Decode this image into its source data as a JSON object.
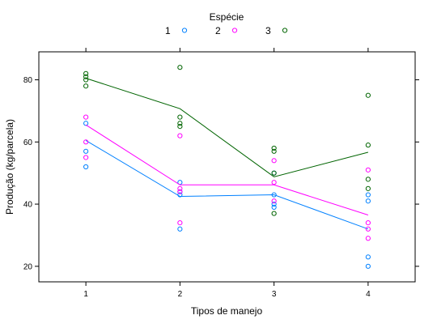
{
  "chart_data": {
    "type": "scatter",
    "xlabel": "Tipos de manejo",
    "ylabel": "Produção (kg/parcela)",
    "legend_title": "Espécie",
    "legend_position": "top",
    "x_ticks": [
      "1",
      "2",
      "3",
      "4"
    ],
    "y_ticks": [
      20,
      40,
      60,
      80
    ],
    "xlim": [
      0.5,
      4.5
    ],
    "ylim": [
      15,
      89
    ],
    "grid": false,
    "series": [
      {
        "name": "1",
        "color": "#0080ff",
        "points": [
          [
            1,
            66
          ],
          [
            1,
            57
          ],
          [
            1,
            52
          ],
          [
            2,
            47
          ],
          [
            2,
            44
          ],
          [
            2,
            43
          ],
          [
            2,
            32
          ],
          [
            3,
            43
          ],
          [
            3,
            40
          ],
          [
            3,
            39
          ],
          [
            3,
            50
          ],
          [
            4,
            43
          ],
          [
            4,
            41
          ],
          [
            4,
            23
          ],
          [
            4,
            20
          ]
        ],
        "line": [
          [
            1,
            60.5
          ],
          [
            2,
            42.5
          ],
          [
            3,
            43
          ],
          [
            4,
            32
          ]
        ]
      },
      {
        "name": "2",
        "color": "#ff00ff",
        "points": [
          [
            1,
            68
          ],
          [
            1,
            60
          ],
          [
            1,
            55
          ],
          [
            2,
            62
          ],
          [
            2,
            45
          ],
          [
            2,
            44
          ],
          [
            2,
            34
          ],
          [
            3,
            54
          ],
          [
            3,
            47
          ],
          [
            3,
            41
          ],
          [
            4,
            51
          ],
          [
            4,
            34
          ],
          [
            4,
            32
          ],
          [
            4,
            29
          ]
        ],
        "line": [
          [
            1,
            65.5
          ],
          [
            2,
            46.2
          ],
          [
            3,
            46.2
          ],
          [
            4,
            36.5
          ]
        ]
      },
      {
        "name": "3",
        "color": "#006400",
        "points": [
          [
            1,
            82
          ],
          [
            1,
            81
          ],
          [
            1,
            80
          ],
          [
            1,
            78
          ],
          [
            2,
            84
          ],
          [
            2,
            68
          ],
          [
            2,
            66
          ],
          [
            2,
            65
          ],
          [
            3,
            58
          ],
          [
            3,
            57
          ],
          [
            3,
            50
          ],
          [
            3,
            37
          ],
          [
            4,
            75
          ],
          [
            4,
            59
          ],
          [
            4,
            48
          ],
          [
            4,
            45
          ]
        ],
        "line": [
          [
            1,
            80.5
          ],
          [
            2,
            70.7
          ],
          [
            3,
            48.8
          ],
          [
            4,
            56.7
          ]
        ]
      }
    ]
  }
}
